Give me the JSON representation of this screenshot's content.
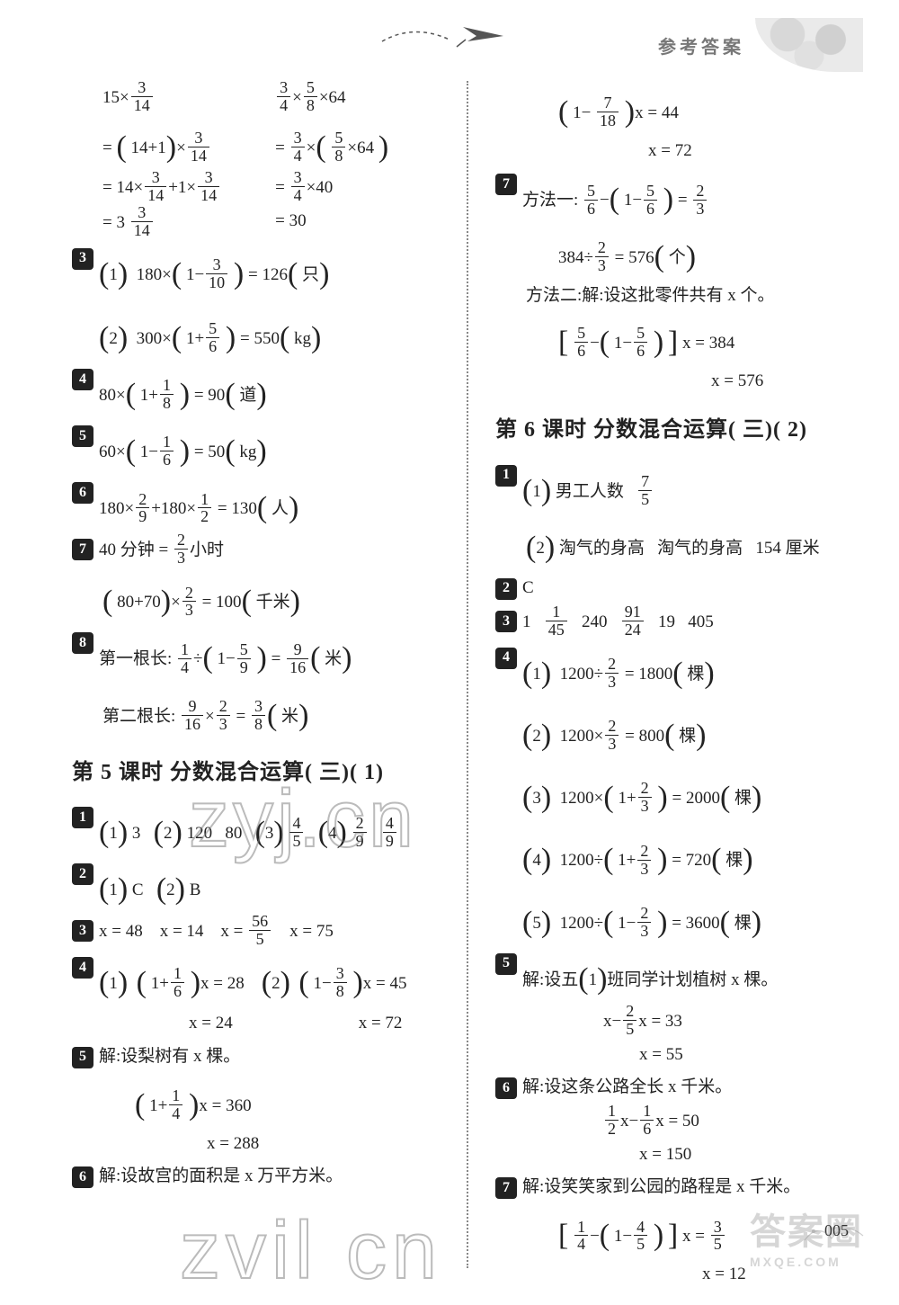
{
  "header": {
    "label": "参考答案"
  },
  "page_number": "005",
  "watermarks": {
    "wm1": "zyj.cn",
    "wm2": "zvil cn",
    "wm3_top": "答案圈",
    "wm3_sub": "MXQE.COM"
  },
  "left": {
    "block1": {
      "colA": [
        "15×\\f{3}{14}",
        "= ( 14+1)×\\f{3}{14}",
        "= 14×\\f{3}{14}+1×\\f{3}{14}",
        "= 3 \\f{3}{14}"
      ],
      "colB": [
        "\\f{3}{4}×\\f{5}{8}×64",
        "= \\f{3}{4}×( \\f{5}{8}×64 )",
        "= \\f{3}{4}×40",
        "= 30"
      ]
    },
    "q3": [
      "(1)  180×( 1−\\f{3}{10} ) = 126( 只)",
      "(2)  300×( 1+\\f{5}{6} ) = 550( kg)"
    ],
    "q4": "80×( 1+\\f{1}{8} ) = 90( 道)",
    "q5": "60×( 1−\\f{1}{6} ) = 50( kg)",
    "q6": "180×\\f{2}{9}+180×\\f{1}{2} = 130( 人)",
    "q7a": "40 分钟 = \\f{2}{3}小时",
    "q7b": "( 80+70)×\\f{2}{3} = 100( 千米)",
    "q8a": "第一根长: \\f{1}{4}÷( 1−\\f{5}{9} ) = \\f{9}{16}( 米)",
    "q8b": "第二根长: \\f{9}{16}×\\f{2}{3} = \\f{3}{8}( 米)",
    "section5": "第 5 课时   分数混合运算( 三)( 1)",
    "s5q1": "(1) 3   (2) 120   80   (3) \\f{4}{5}   (4) \\f{2}{9}   \\f{4}{9}",
    "s5q2": "(1) C   (2) B",
    "s5q3": "x = 48    x = 14    x = \\f{56}{5}    x = 75",
    "s5q4a": "(1)  ( 1+\\f{1}{6} )x = 28    (2)  ( 1−\\f{3}{8} )x = 45",
    "s5q4b1": "x = 24",
    "s5q4b2": "x = 72",
    "s5q5a": "解:设梨树有 x 棵。",
    "s5q5b": "( 1+\\f{1}{4} )x = 360",
    "s5q5c": "x = 288",
    "s5q6": "解:设故宫的面积是 x 万平方米。"
  },
  "right": {
    "cont1": "( 1− \\f{7}{18} )x = 44",
    "cont2": "x = 72",
    "q7a": "方法一: \\f{5}{6}−( 1−\\f{5}{6} ) = \\f{2}{3}",
    "q7b": "384÷\\f{2}{3} = 576( 个)",
    "q7c": "方法二:解:设这批零件共有 x 个。",
    "q7d": "[ \\f{5}{6}−( 1−\\f{5}{6} ) ] x = 384",
    "q7e": "x = 576",
    "section6": "第 6 课时   分数混合运算( 三)( 2)",
    "s6q1a": "(1) 男工人数   \\f{7}{5}",
    "s6q1b": "(2) 淘气的身高   淘气的身高   154 厘米",
    "s6q2": "C",
    "s6q3": "1   \\f{1}{45}   240   \\f{91}{24}   19   405",
    "s6q4": [
      "(1)  1200÷\\f{2}{3} = 1800( 棵)",
      "(2)  1200×\\f{2}{3} = 800( 棵)",
      "(3)  1200×( 1+\\f{2}{3} ) = 2000( 棵)",
      "(4)  1200÷( 1+\\f{2}{3} ) = 720( 棵)",
      "(5)  1200÷( 1−\\f{2}{3} ) = 3600( 棵)"
    ],
    "s6q5a": "解:设五(1)班同学计划植树 x 棵。",
    "s6q5b": "x−\\f{2}{5}x = 33",
    "s6q5c": "x = 55",
    "s6q6a": "解:设这条公路全长 x 千米。",
    "s6q6b": "\\f{1}{2}x−\\f{1}{6}x = 50",
    "s6q6c": "x = 150",
    "s6q7a": "解:设笑笑家到公园的路程是 x 千米。",
    "s6q7b": "[ \\f{1}{4}−( 1−\\f{4}{5} ) ] x = \\f{3}{5}",
    "s6q7c": "x = 12"
  }
}
